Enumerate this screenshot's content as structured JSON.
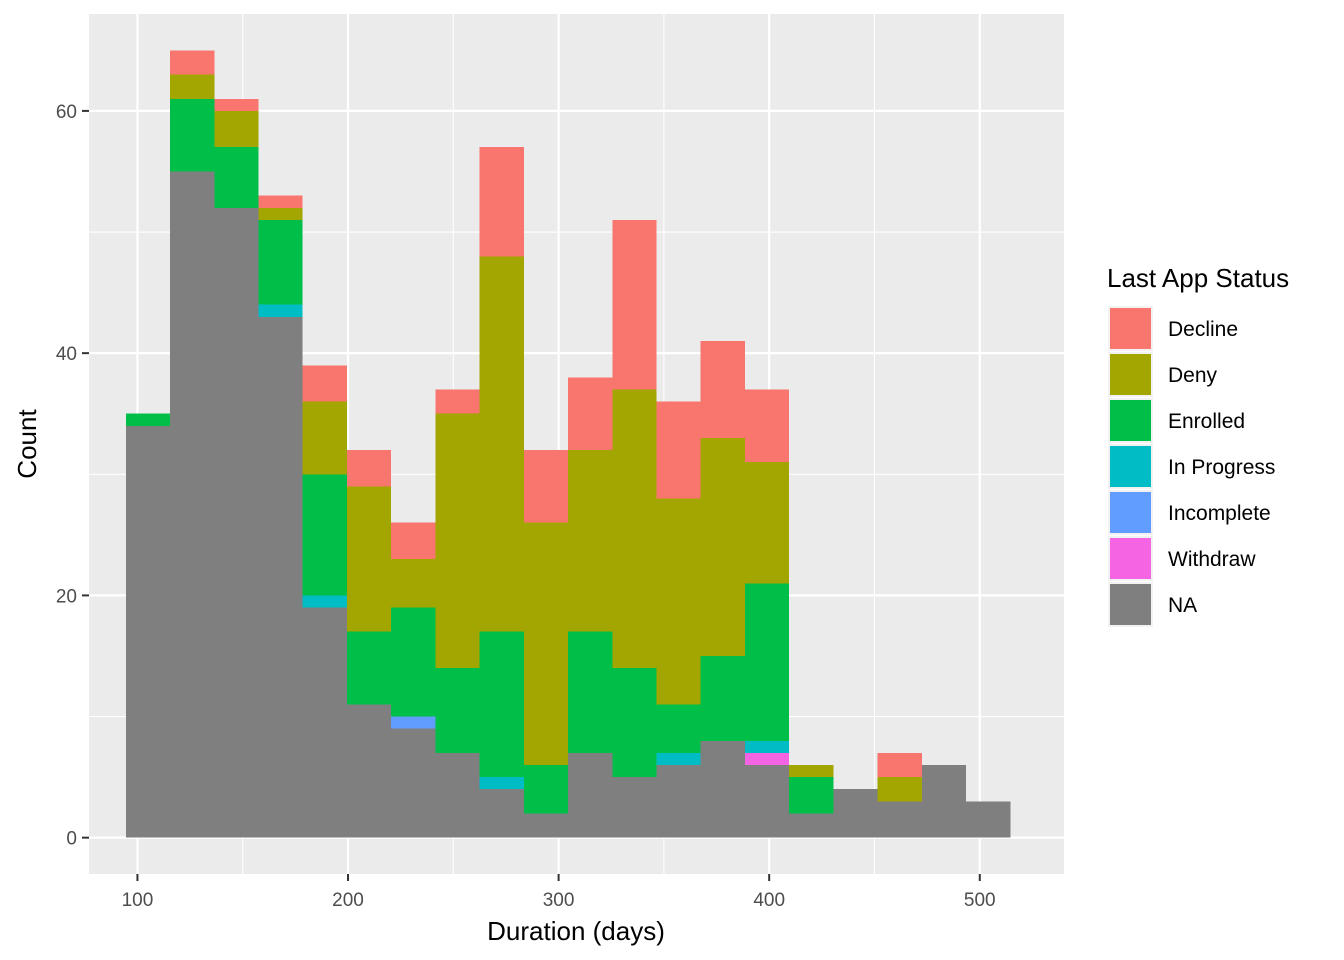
{
  "chart_data": {
    "type": "bar",
    "stacked": true,
    "histogram": true,
    "xlabel": "Duration (days)",
    "ylabel": "Count",
    "xlim": [
      77,
      540
    ],
    "ylim": [
      -3,
      68
    ],
    "xticks": [
      100,
      200,
      300,
      400,
      500
    ],
    "yticks": [
      0,
      20,
      40,
      60
    ],
    "grid": true,
    "legend": {
      "title": "Last App Status",
      "placement": "right",
      "entries": [
        "Decline",
        "Deny",
        "Enrolled",
        "In Progress",
        "Incomplete",
        "Withdraw",
        "NA"
      ]
    },
    "colors": {
      "Decline": "#F8766D",
      "Deny": "#A3A500",
      "Enrolled": "#00BF48",
      "In Progress": "#00BCC4",
      "Incomplete": "#619CFF",
      "Withdraw": "#F564E3",
      "NA": "#7F7F7F"
    },
    "bin_width": 21,
    "x": [
      105,
      126,
      147,
      168,
      189,
      210,
      231,
      252,
      273,
      294,
      315,
      336,
      357,
      378,
      399,
      420,
      441,
      462,
      483,
      504
    ],
    "series": [
      {
        "name": "NA",
        "values": [
          34,
          55,
          52,
          43,
          19,
          11,
          9,
          7,
          4,
          2,
          7,
          5,
          6,
          8,
          6,
          2,
          4,
          3,
          6,
          3
        ]
      },
      {
        "name": "Withdraw",
        "values": [
          0,
          0,
          0,
          0,
          0,
          0,
          0,
          0,
          0,
          0,
          0,
          0,
          0,
          0,
          1,
          0,
          0,
          0,
          0,
          0
        ]
      },
      {
        "name": "Incomplete",
        "values": [
          0,
          0,
          0,
          0,
          0,
          0,
          1,
          0,
          0,
          0,
          0,
          0,
          0,
          0,
          0,
          0,
          0,
          0,
          0,
          0
        ]
      },
      {
        "name": "In Progress",
        "values": [
          0,
          0,
          0,
          1,
          1,
          0,
          0,
          0,
          1,
          0,
          0,
          0,
          1,
          0,
          1,
          0,
          0,
          0,
          0,
          0
        ]
      },
      {
        "name": "Enrolled",
        "values": [
          1,
          6,
          5,
          7,
          10,
          6,
          9,
          7,
          12,
          4,
          10,
          9,
          4,
          7,
          13,
          3,
          0,
          0,
          0,
          0
        ]
      },
      {
        "name": "Deny",
        "values": [
          0,
          2,
          3,
          1,
          6,
          12,
          4,
          21,
          31,
          20,
          15,
          23,
          17,
          18,
          10,
          1,
          0,
          2,
          0,
          0
        ]
      },
      {
        "name": "Decline",
        "values": [
          0,
          2,
          1,
          1,
          3,
          3,
          3,
          2,
          9,
          6,
          6,
          14,
          8,
          8,
          6,
          0,
          0,
          2,
          0,
          0
        ]
      }
    ]
  }
}
